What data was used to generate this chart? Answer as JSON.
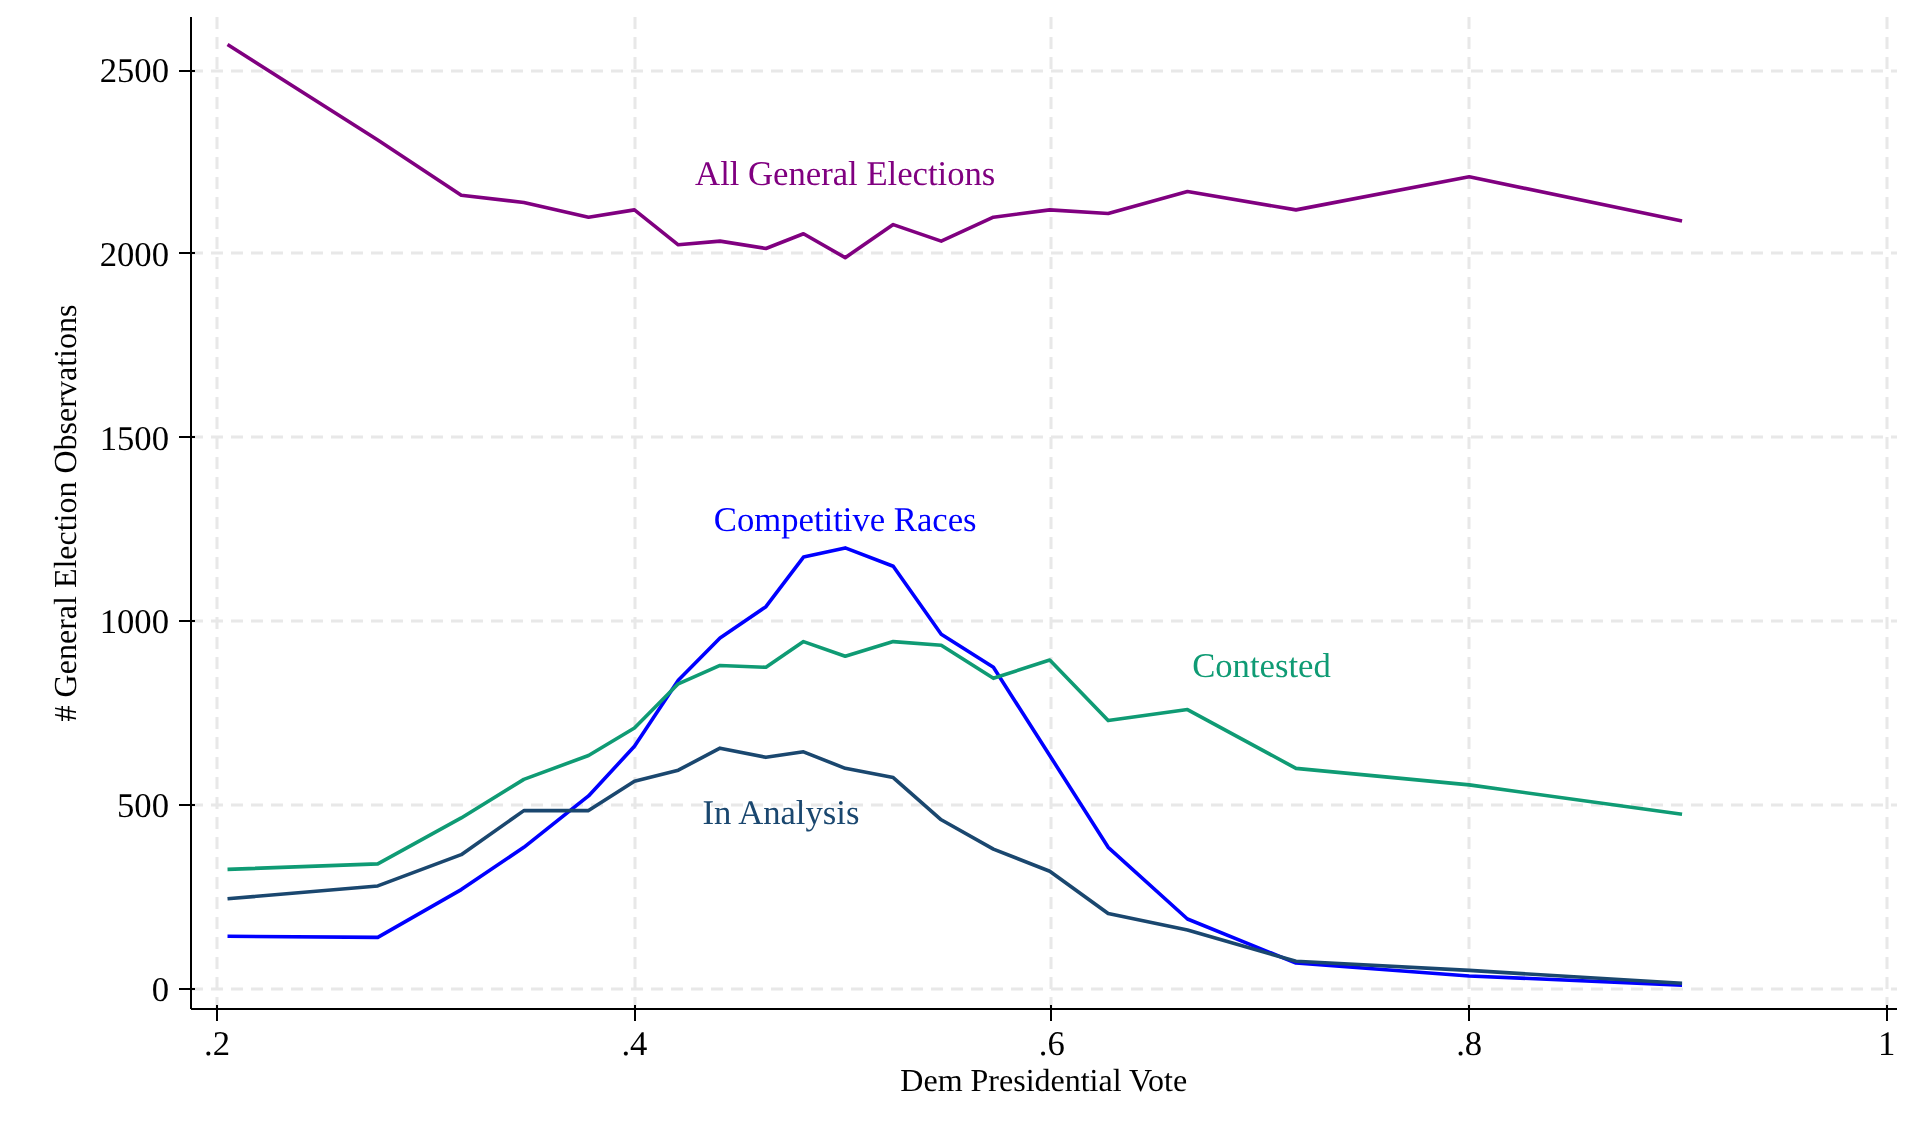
{
  "chart_data": {
    "type": "line",
    "xlabel": "Dem Presidential Vote",
    "ylabel": "# General Election Observations",
    "x": [
      0.205,
      0.277,
      0.317,
      0.347,
      0.378,
      0.4,
      0.421,
      0.441,
      0.463,
      0.481,
      0.501,
      0.524,
      0.547,
      0.572,
      0.599,
      0.627,
      0.665,
      0.717,
      0.8,
      0.902
    ],
    "series": [
      {
        "name": "All General Elections",
        "color": "#800080",
        "values": [
          2570,
          2310,
          2160,
          2140,
          2100,
          2120,
          2025,
          2035,
          2015,
          2055,
          1990,
          2080,
          2035,
          2100,
          2120,
          2110,
          2170,
          2120,
          2210,
          2090
        ]
      },
      {
        "name": "Competitive Races",
        "color": "#0000ff",
        "values": [
          143,
          140,
          270,
          385,
          525,
          660,
          840,
          955,
          1040,
          1175,
          1200,
          1150,
          965,
          875,
          635,
          385,
          190,
          70,
          35,
          10
        ]
      },
      {
        "name": "Contested",
        "color": "#0f9b74",
        "values": [
          325,
          340,
          465,
          570,
          635,
          710,
          830,
          880,
          875,
          945,
          905,
          945,
          935,
          845,
          895,
          730,
          760,
          600,
          555,
          475
        ]
      },
      {
        "name": "In Analysis",
        "color": "#1a476f",
        "values": [
          245,
          280,
          365,
          485,
          485,
          565,
          595,
          655,
          630,
          645,
          600,
          575,
          460,
          380,
          320,
          205,
          160,
          75,
          50,
          15
        ]
      }
    ],
    "xlim": [
      0.1875,
      1.005
    ],
    "ylim": [
      -55,
      2645
    ],
    "xticks": [
      {
        "value": 0.2,
        "label": ".2"
      },
      {
        "value": 0.4,
        "label": ".4"
      },
      {
        "value": 0.6,
        "label": ".6"
      },
      {
        "value": 0.8,
        "label": ".8"
      },
      1
    ],
    "yticks": [
      0,
      500,
      1000,
      1500,
      2000,
      2500
    ],
    "grid": true,
    "line_style": "solid",
    "marker": "none"
  }
}
